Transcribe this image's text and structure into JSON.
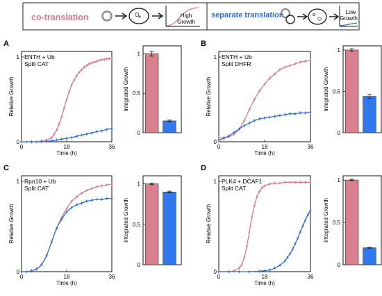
{
  "colors": {
    "co": "#d97a8a",
    "sep": "#2f6fd6",
    "bar_co": "#d9808e",
    "bar_sep": "#2f78ee"
  },
  "legend": {
    "co_label": "co-translation",
    "sep_label": "separate translation",
    "high_label_1": "High",
    "high_label_2": "Growth",
    "low_label_1": "Low",
    "low_label_2": "Growth"
  },
  "chart_data": [
    {
      "panel": "A",
      "type": "line",
      "title_lines": [
        "ENTH + Ub",
        "Split CAT"
      ],
      "xlabel": "Time (h)",
      "ylabel": "Relative Growth",
      "xlim": [
        0,
        36
      ],
      "ylim": [
        0,
        1
      ],
      "xticks": [
        0,
        18,
        36
      ],
      "yticks": [
        0,
        1
      ],
      "series": [
        {
          "x": [
            0,
            2,
            4,
            6,
            8,
            10,
            12,
            13,
            14,
            15,
            16,
            17,
            18,
            19,
            20,
            21,
            22,
            23,
            24,
            25,
            26,
            27,
            28,
            29,
            30,
            31,
            32,
            33,
            34,
            35,
            36
          ],
          "y": [
            0,
            0,
            0,
            0,
            0.01,
            0.02,
            0.05,
            0.09,
            0.14,
            0.21,
            0.3,
            0.4,
            0.5,
            0.59,
            0.67,
            0.73,
            0.78,
            0.82,
            0.85,
            0.88,
            0.9,
            0.92,
            0.93,
            0.94,
            0.95,
            0.96,
            0.97,
            0.97,
            0.98,
            0.98,
            0.98
          ]
        },
        {
          "x": [
            0,
            4,
            8,
            10,
            12,
            14,
            16,
            18,
            20,
            22,
            24,
            26,
            28,
            30,
            32,
            34,
            36
          ],
          "y": [
            0,
            0,
            0,
            0.005,
            0.01,
            0.02,
            0.03,
            0.04,
            0.05,
            0.065,
            0.08,
            0.09,
            0.105,
            0.12,
            0.13,
            0.145,
            0.155
          ]
        }
      ],
      "bars": {
        "values": [
          1.0,
          0.15
        ],
        "errors": [
          0.03,
          0.01
        ]
      },
      "bar_ylabel": "Integrated Growth",
      "bar_ylim": [
        0,
        1.1
      ],
      "bar_yticks": [
        "1",
        "0.5",
        "0"
      ]
    },
    {
      "panel": "B",
      "type": "line",
      "title_lines": [
        "ENTH + Ub",
        "Split DHFR"
      ],
      "xlabel": "Time (h)",
      "ylabel": "Relative Growth",
      "xlim": [
        0,
        36
      ],
      "ylim": [
        0,
        1
      ],
      "xticks": [
        0,
        18,
        36
      ],
      "yticks": [
        0,
        1
      ],
      "series": [
        {
          "x": [
            0,
            2,
            4,
            6,
            8,
            10,
            12,
            14,
            16,
            18,
            20,
            22,
            24,
            26,
            28,
            30,
            32,
            34,
            36
          ],
          "y": [
            0.05,
            0.05,
            0.06,
            0.09,
            0.15,
            0.25,
            0.38,
            0.5,
            0.6,
            0.68,
            0.75,
            0.8,
            0.85,
            0.88,
            0.9,
            0.92,
            0.94,
            0.95,
            0.96
          ]
        },
        {
          "x": [
            0,
            2,
            4,
            6,
            8,
            10,
            12,
            14,
            16,
            18,
            20,
            22,
            24,
            26,
            28,
            30,
            32,
            34,
            36
          ],
          "y": [
            0.02,
            0.04,
            0.07,
            0.11,
            0.15,
            0.19,
            0.22,
            0.25,
            0.27,
            0.28,
            0.29,
            0.3,
            0.31,
            0.32,
            0.33,
            0.33,
            0.34,
            0.34,
            0.35
          ]
        }
      ],
      "bars": {
        "values": [
          1.0,
          0.44
        ],
        "errors": [
          0.015,
          0.025
        ]
      },
      "bar_ylabel": "Integrated Growth",
      "bar_ylim": [
        0,
        1.05
      ],
      "bar_yticks": [
        "1",
        "0.5",
        "0"
      ]
    },
    {
      "panel": "C",
      "type": "line",
      "title_lines": [
        "Rpn10 + Ub",
        "Split CAT"
      ],
      "xlabel": "Time (h)",
      "ylabel": "Relative Growth",
      "xlim": [
        0,
        36
      ],
      "ylim": [
        0,
        1
      ],
      "xticks": [
        0,
        18,
        36
      ],
      "yticks": [
        0,
        1
      ],
      "series": [
        {
          "x": [
            0,
            2,
            4,
            6,
            8,
            10,
            12,
            14,
            16,
            18,
            20,
            22,
            24,
            26,
            28,
            30,
            32,
            34,
            36
          ],
          "y": [
            0,
            0,
            0.01,
            0.03,
            0.08,
            0.18,
            0.33,
            0.48,
            0.6,
            0.7,
            0.78,
            0.83,
            0.87,
            0.9,
            0.92,
            0.94,
            0.95,
            0.96,
            0.97
          ]
        },
        {
          "x": [
            0,
            2,
            4,
            6,
            8,
            10,
            12,
            14,
            16,
            18,
            20,
            22,
            24,
            26,
            28,
            30,
            32,
            34,
            36
          ],
          "y": [
            0,
            0,
            0.01,
            0.03,
            0.08,
            0.18,
            0.33,
            0.48,
            0.58,
            0.66,
            0.71,
            0.74,
            0.76,
            0.78,
            0.79,
            0.8,
            0.8,
            0.81,
            0.81
          ]
        }
      ],
      "bars": {
        "values": [
          1.0,
          0.9
        ],
        "errors": [
          0.01,
          0.01
        ]
      },
      "bar_ylabel": "Integrated Growth",
      "bar_ylim": [
        0,
        1.1
      ],
      "bar_yticks": [
        "1",
        "0.5",
        "0"
      ]
    },
    {
      "panel": "D",
      "type": "line",
      "title_lines": [
        "PLK4 + DCAF1",
        "Split CAT"
      ],
      "xlabel": "Time (h)",
      "ylabel": "Relative Growth",
      "xlim": [
        0,
        36
      ],
      "ylim": [
        0,
        1
      ],
      "xticks": [
        0,
        18,
        36
      ],
      "yticks": [
        0,
        1
      ],
      "series": [
        {
          "x": [
            0,
            4,
            6,
            8,
            9,
            10,
            11,
            12,
            13,
            14,
            15,
            16,
            17,
            18,
            20,
            22,
            24,
            26,
            28,
            30,
            32,
            34,
            36
          ],
          "y": [
            0,
            0,
            0.01,
            0.04,
            0.08,
            0.16,
            0.28,
            0.44,
            0.6,
            0.73,
            0.83,
            0.89,
            0.93,
            0.95,
            0.97,
            0.98,
            0.98,
            0.99,
            0.99,
            0.99,
            0.99,
            0.99,
            0.99
          ]
        },
        {
          "x": [
            0,
            4,
            8,
            12,
            16,
            18,
            20,
            22,
            24,
            26,
            27,
            28,
            29,
            30,
            31,
            32,
            33,
            34,
            35,
            36
          ],
          "y": [
            0,
            0,
            0,
            0,
            0.005,
            0.01,
            0.02,
            0.04,
            0.07,
            0.12,
            0.16,
            0.2,
            0.25,
            0.31,
            0.37,
            0.44,
            0.51,
            0.57,
            0.63,
            0.68
          ]
        }
      ],
      "bars": {
        "values": [
          1.0,
          0.2
        ],
        "errors": [
          0.008,
          0.005
        ]
      },
      "bar_ylabel": "Integrated Growth",
      "bar_ylim": [
        0,
        1.05
      ],
      "bar_yticks": [
        "1",
        "0.5",
        "0"
      ]
    }
  ]
}
